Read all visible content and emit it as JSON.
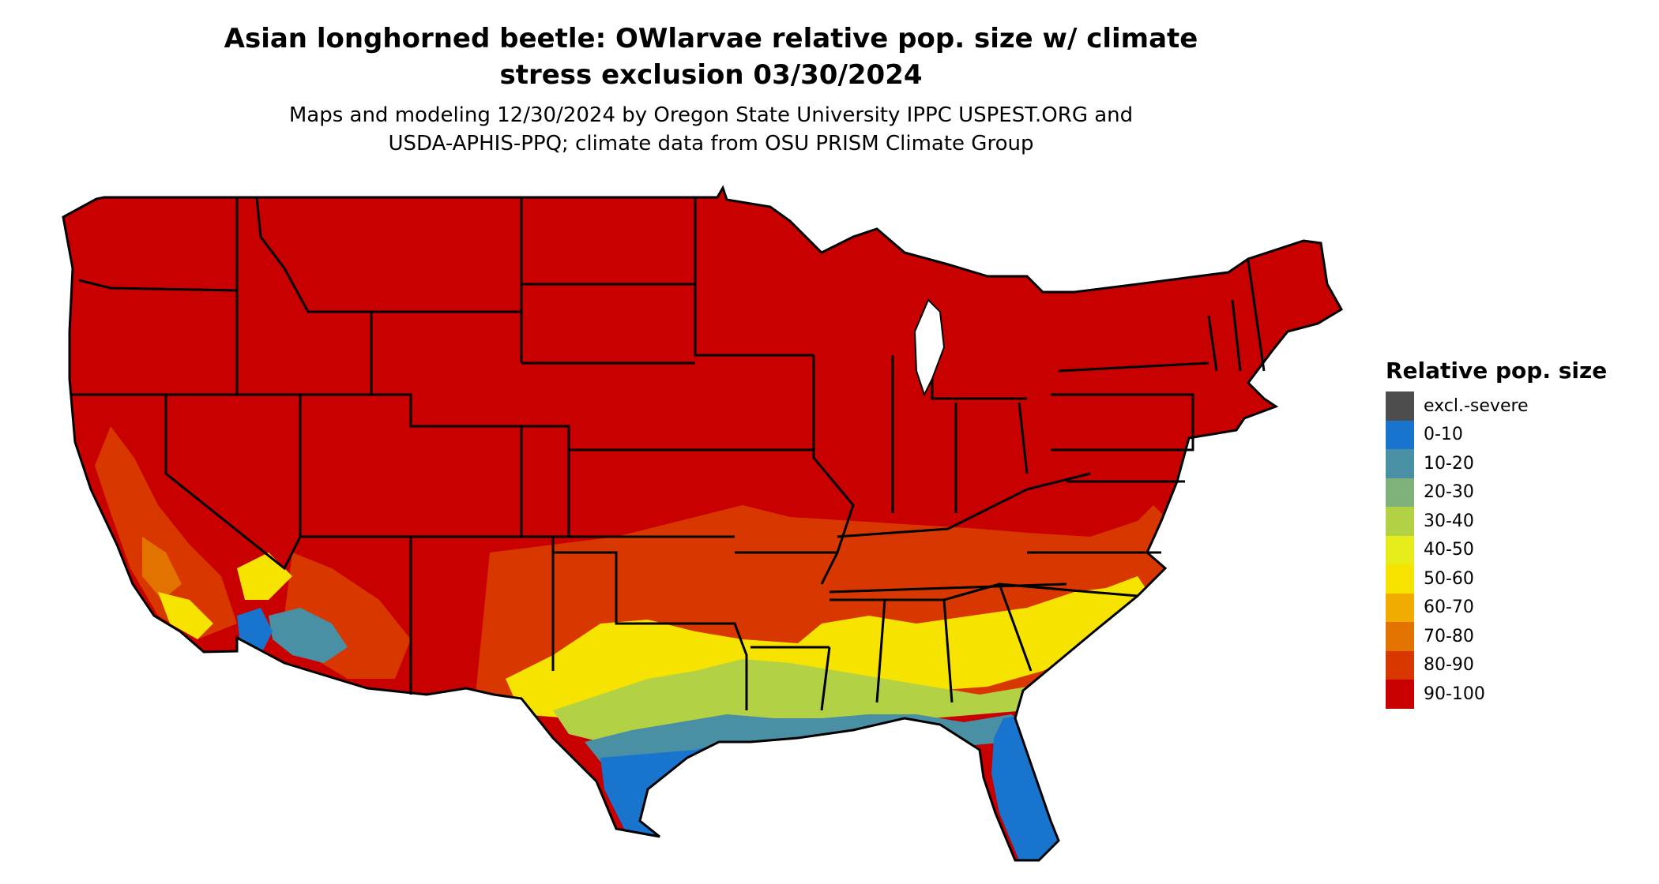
{
  "title_line1": "Asian longhorned beetle: OWlarvae relative pop. size w/ climate",
  "title_line2": "stress exclusion 03/30/2024",
  "subtitle_line1": "Maps and modeling 12/30/2024 by Oregon State University IPPC USPEST.ORG and",
  "subtitle_line2": "USDA-APHIS-PPQ; climate data from OSU PRISM Climate Group",
  "legend": {
    "title": "Relative pop. size",
    "items": [
      {
        "label": "excl.-severe",
        "color": "#4d4d4d"
      },
      {
        "label": "0-10",
        "color": "#1874cd"
      },
      {
        "label": "10-20",
        "color": "#4a90a4"
      },
      {
        "label": "20-30",
        "color": "#7fb17a"
      },
      {
        "label": "30-40",
        "color": "#b3d145"
      },
      {
        "label": "40-50",
        "color": "#e6ed1b"
      },
      {
        "label": "50-60",
        "color": "#f7e300"
      },
      {
        "label": "60-70",
        "color": "#f0ad00"
      },
      {
        "label": "70-80",
        "color": "#e27300"
      },
      {
        "label": "80-90",
        "color": "#d83700"
      },
      {
        "label": "90-100",
        "color": "#c80000"
      }
    ]
  },
  "map": {
    "region": "contiguous-united-states",
    "base_color": "#c80000",
    "outline_color": "#000000"
  }
}
